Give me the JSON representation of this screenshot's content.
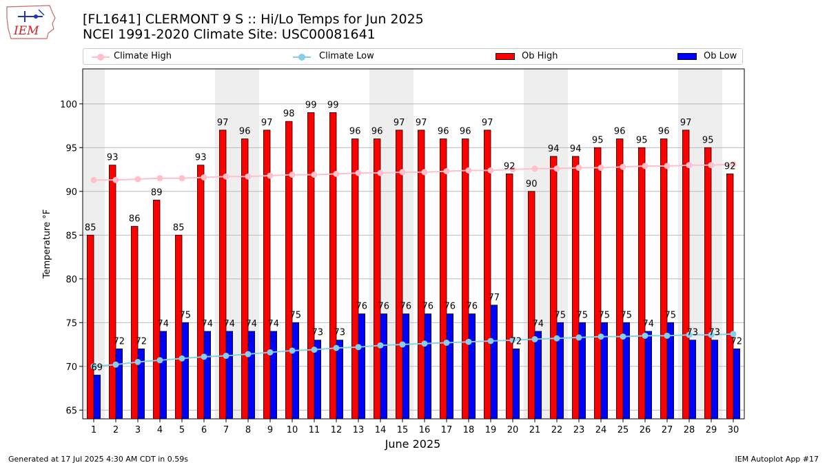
{
  "header": {
    "title_line1": "[FL1641] CLERMONT 9 S :: Hi/Lo Temps for Jun 2025",
    "title_line2": "NCEI 1991-2020 Climate Site: USC00081641",
    "logo_text": "IEM"
  },
  "legend": {
    "climate_high": "Climate High",
    "climate_low": "Climate Low",
    "ob_high": "Ob High",
    "ob_low": "Ob Low"
  },
  "footer": {
    "left": "Generated at 17 Jul 2025 4:30 AM CDT in 0.59s",
    "right": "IEM Autoplot App #17"
  },
  "colors": {
    "ob_high": "#ff0000",
    "ob_low": "#0000ff",
    "climate_high": "#ffc0cb",
    "climate_low": "#87ceeb",
    "weekend_band": "#eeeeee",
    "grid": "#b0b0b0"
  },
  "chart_data": {
    "type": "bar",
    "xlabel": "June 2025",
    "ylabel": "Temperature °F",
    "ylim": [
      64,
      104
    ],
    "yticks": [
      65,
      70,
      75,
      80,
      85,
      90,
      95,
      100
    ],
    "grid": "horizontal",
    "legend_placement": "top",
    "categories": [
      "1",
      "2",
      "3",
      "4",
      "5",
      "6",
      "7",
      "8",
      "9",
      "10",
      "11",
      "12",
      "13",
      "14",
      "15",
      "16",
      "17",
      "18",
      "19",
      "20",
      "21",
      "22",
      "23",
      "24",
      "25",
      "26",
      "27",
      "28",
      "29",
      "30"
    ],
    "weekend_days": [
      1,
      7,
      8,
      14,
      15,
      21,
      22,
      28,
      29
    ],
    "series": [
      {
        "name": "Ob High",
        "kind": "bar",
        "values": [
          85,
          93,
          86,
          89,
          85,
          93,
          97,
          96,
          97,
          98,
          99,
          99,
          96,
          96,
          97,
          97,
          96,
          96,
          97,
          92,
          90,
          94,
          94,
          95,
          96,
          95,
          96,
          97,
          95,
          92
        ]
      },
      {
        "name": "Ob Low",
        "kind": "bar",
        "values": [
          69,
          72,
          72,
          74,
          75,
          74,
          74,
          74,
          74,
          75,
          73,
          73,
          76,
          76,
          76,
          76,
          76,
          76,
          77,
          72,
          74,
          75,
          75,
          75,
          75,
          74,
          75,
          73,
          73,
          72
        ]
      },
      {
        "name": "Climate High",
        "kind": "line",
        "values": [
          91.3,
          91.3,
          91.4,
          91.5,
          91.5,
          91.6,
          91.7,
          91.7,
          91.8,
          91.9,
          91.9,
          92.0,
          92.1,
          92.1,
          92.2,
          92.2,
          92.3,
          92.4,
          92.4,
          92.5,
          92.6,
          92.6,
          92.7,
          92.7,
          92.8,
          92.9,
          92.9,
          93.0,
          93.0,
          93.1
        ]
      },
      {
        "name": "Climate Low",
        "kind": "line",
        "values": [
          70.0,
          70.2,
          70.5,
          70.7,
          70.9,
          71.1,
          71.2,
          71.4,
          71.6,
          71.8,
          71.9,
          72.1,
          72.2,
          72.4,
          72.5,
          72.6,
          72.7,
          72.8,
          72.9,
          73.0,
          73.1,
          73.2,
          73.3,
          73.4,
          73.4,
          73.5,
          73.5,
          73.6,
          73.6,
          73.7
        ]
      }
    ]
  }
}
